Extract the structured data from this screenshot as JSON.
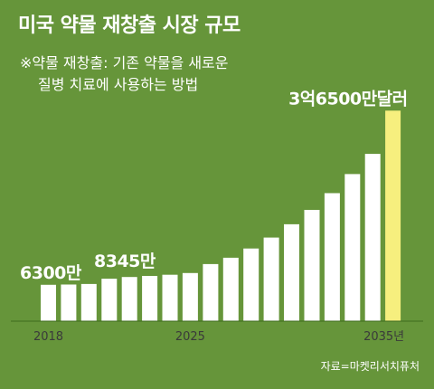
{
  "title": "미국 약물 재창출 시장 규모",
  "note": {
    "line1": "※약물 재창출: 기존 약물을 새로운",
    "line2": "질병 치료에 사용하는 방법"
  },
  "source": "자료=마켓리서치퓨처",
  "colors": {
    "background": "#66953a",
    "bar": "#ffffff",
    "highlight": "#f6ef7e",
    "text": "#ffffff",
    "label_dark": "#3a3a3a"
  },
  "chart_data": {
    "type": "bar",
    "categories": [
      "2018",
      "2019",
      "2020",
      "2021",
      "2022",
      "2023",
      "2024",
      "2025",
      "2026",
      "2027",
      "2028",
      "2029",
      "2030",
      "2031",
      "2032",
      "2033",
      "2034",
      "2035"
    ],
    "values": [
      63000000,
      63500000,
      64500000,
      73500000,
      76500000,
      78500000,
      80500000,
      83450000,
      99000000,
      110000000,
      126000000,
      145000000,
      168000000,
      193000000,
      222000000,
      255000000,
      290000000,
      365000000
    ],
    "highlight_index": 17,
    "ylim": [
      0,
      400000000
    ],
    "tick_labels": [
      {
        "index": 0,
        "text": "2018"
      },
      {
        "index": 7,
        "text": "2025"
      },
      {
        "index": 17,
        "text": "2035년"
      }
    ],
    "data_labels": [
      {
        "index": 0,
        "text": "6300만"
      },
      {
        "index": 7,
        "text": "8345만"
      },
      {
        "index": 17,
        "text": "3억6500만달러"
      }
    ]
  }
}
